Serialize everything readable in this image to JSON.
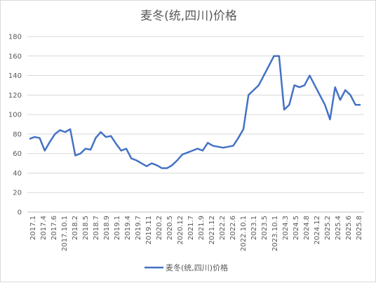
{
  "chart_data": {
    "type": "line",
    "title": "麦冬(统,四川)价格",
    "ylim": [
      0,
      180
    ],
    "yticks": [
      0,
      20,
      40,
      60,
      80,
      100,
      120,
      140,
      160,
      180
    ],
    "grid": true,
    "legend_position": "bottom",
    "line_color": "#4472C4",
    "x_tick_labels": [
      "2017.1",
      "2017.4",
      "2017.6",
      "2017.10.1",
      "2018.2",
      "2018.5",
      "2018.7",
      "2018.9",
      "2019.1",
      "2019.4",
      "2019.7",
      "2019.11",
      "2020.2",
      "2020.5",
      "2020.12",
      "2021.7",
      "2021.9",
      "2021.12",
      "2022.2",
      "2022.6",
      "2022.10.1",
      "2023.1",
      "2023.5",
      "2023.10.1",
      "2024.3",
      "2024.5",
      "2024.8",
      "2024.12",
      "2025.2",
      "2025.4",
      "2025.6",
      "2025.8"
    ],
    "series": [
      {
        "name": "麦冬(统,四川)价格",
        "values": [
          75,
          77,
          76,
          63,
          72,
          80,
          84,
          82,
          85,
          58,
          60,
          65,
          64,
          76,
          82,
          77,
          78,
          70,
          63,
          65,
          55,
          53,
          50,
          47,
          50,
          48,
          45,
          45,
          48,
          53,
          59,
          61,
          63,
          65,
          63,
          71,
          68,
          67,
          66,
          67,
          68,
          76,
          85,
          120,
          125,
          130,
          140,
          150,
          160,
          160,
          105,
          110,
          130,
          128,
          130,
          140,
          130,
          120,
          110,
          95,
          128,
          115,
          125,
          120,
          110,
          110
        ]
      }
    ]
  }
}
